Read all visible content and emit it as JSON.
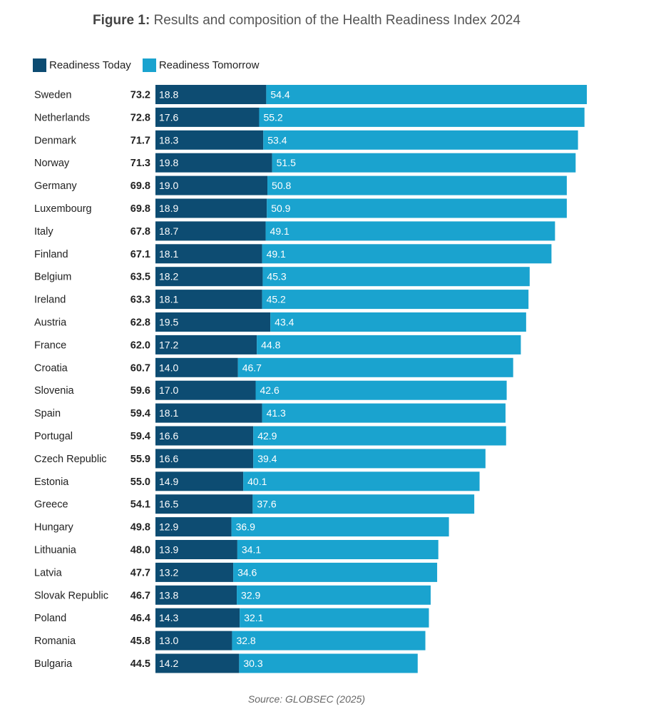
{
  "title_prefix": "Figure 1:",
  "title_text": "Results and composition of the Health Readiness Index 2024",
  "source": "Source: GLOBSEC (2025)",
  "colors": {
    "today": "#0d4c72",
    "tomorrow": "#1aa3cf",
    "text_dark": "#222222",
    "bar_label": "#ffffff"
  },
  "chart_data": {
    "type": "bar",
    "orientation": "horizontal",
    "stacked": true,
    "title": "Results and composition of the Health Readiness Index 2024",
    "legend": [
      "Readiness Today",
      "Readiness Tomorrow"
    ],
    "categories": [
      "Sweden",
      "Netherlands",
      "Denmark",
      "Norway",
      "Germany",
      "Luxembourg",
      "Italy",
      "Finland",
      "Belgium",
      "Ireland",
      "Austria",
      "France",
      "Croatia",
      "Slovenia",
      "Spain",
      "Portugal",
      "Czech Republic",
      "Estonia",
      "Greece",
      "Hungary",
      "Lithuania",
      "Latvia",
      "Slovak Republic",
      "Poland",
      "Romania",
      "Bulgaria"
    ],
    "totals": [
      "73.2",
      "72.8",
      "71.7",
      "71.3",
      "69.8",
      "69.8",
      "67.8",
      "67.1",
      "63.5",
      "63.3",
      "62.8",
      "62.0",
      "60.7",
      "59.6",
      "59.4",
      "59.4",
      "55.9",
      "55.0",
      "54.1",
      "49.8",
      "48.0",
      "47.7",
      "46.7",
      "46.4",
      "45.8",
      "44.5"
    ],
    "series": [
      {
        "name": "Readiness Today",
        "values": [
          18.8,
          17.6,
          18.3,
          19.8,
          19.0,
          18.9,
          18.7,
          18.1,
          18.2,
          18.1,
          19.5,
          17.2,
          14.0,
          17.0,
          18.1,
          16.6,
          16.6,
          14.9,
          16.5,
          12.9,
          13.9,
          13.2,
          13.8,
          14.3,
          13.0,
          14.2
        ]
      },
      {
        "name": "Readiness Tomorrow",
        "values": [
          54.4,
          55.2,
          53.4,
          51.5,
          50.8,
          50.9,
          49.1,
          49.1,
          45.3,
          45.2,
          43.4,
          44.8,
          46.7,
          42.6,
          41.3,
          42.9,
          39.4,
          40.1,
          37.6,
          36.9,
          34.1,
          34.6,
          32.9,
          32.1,
          32.8,
          30.3
        ]
      }
    ],
    "xlim": [
      0,
      73.2
    ]
  }
}
